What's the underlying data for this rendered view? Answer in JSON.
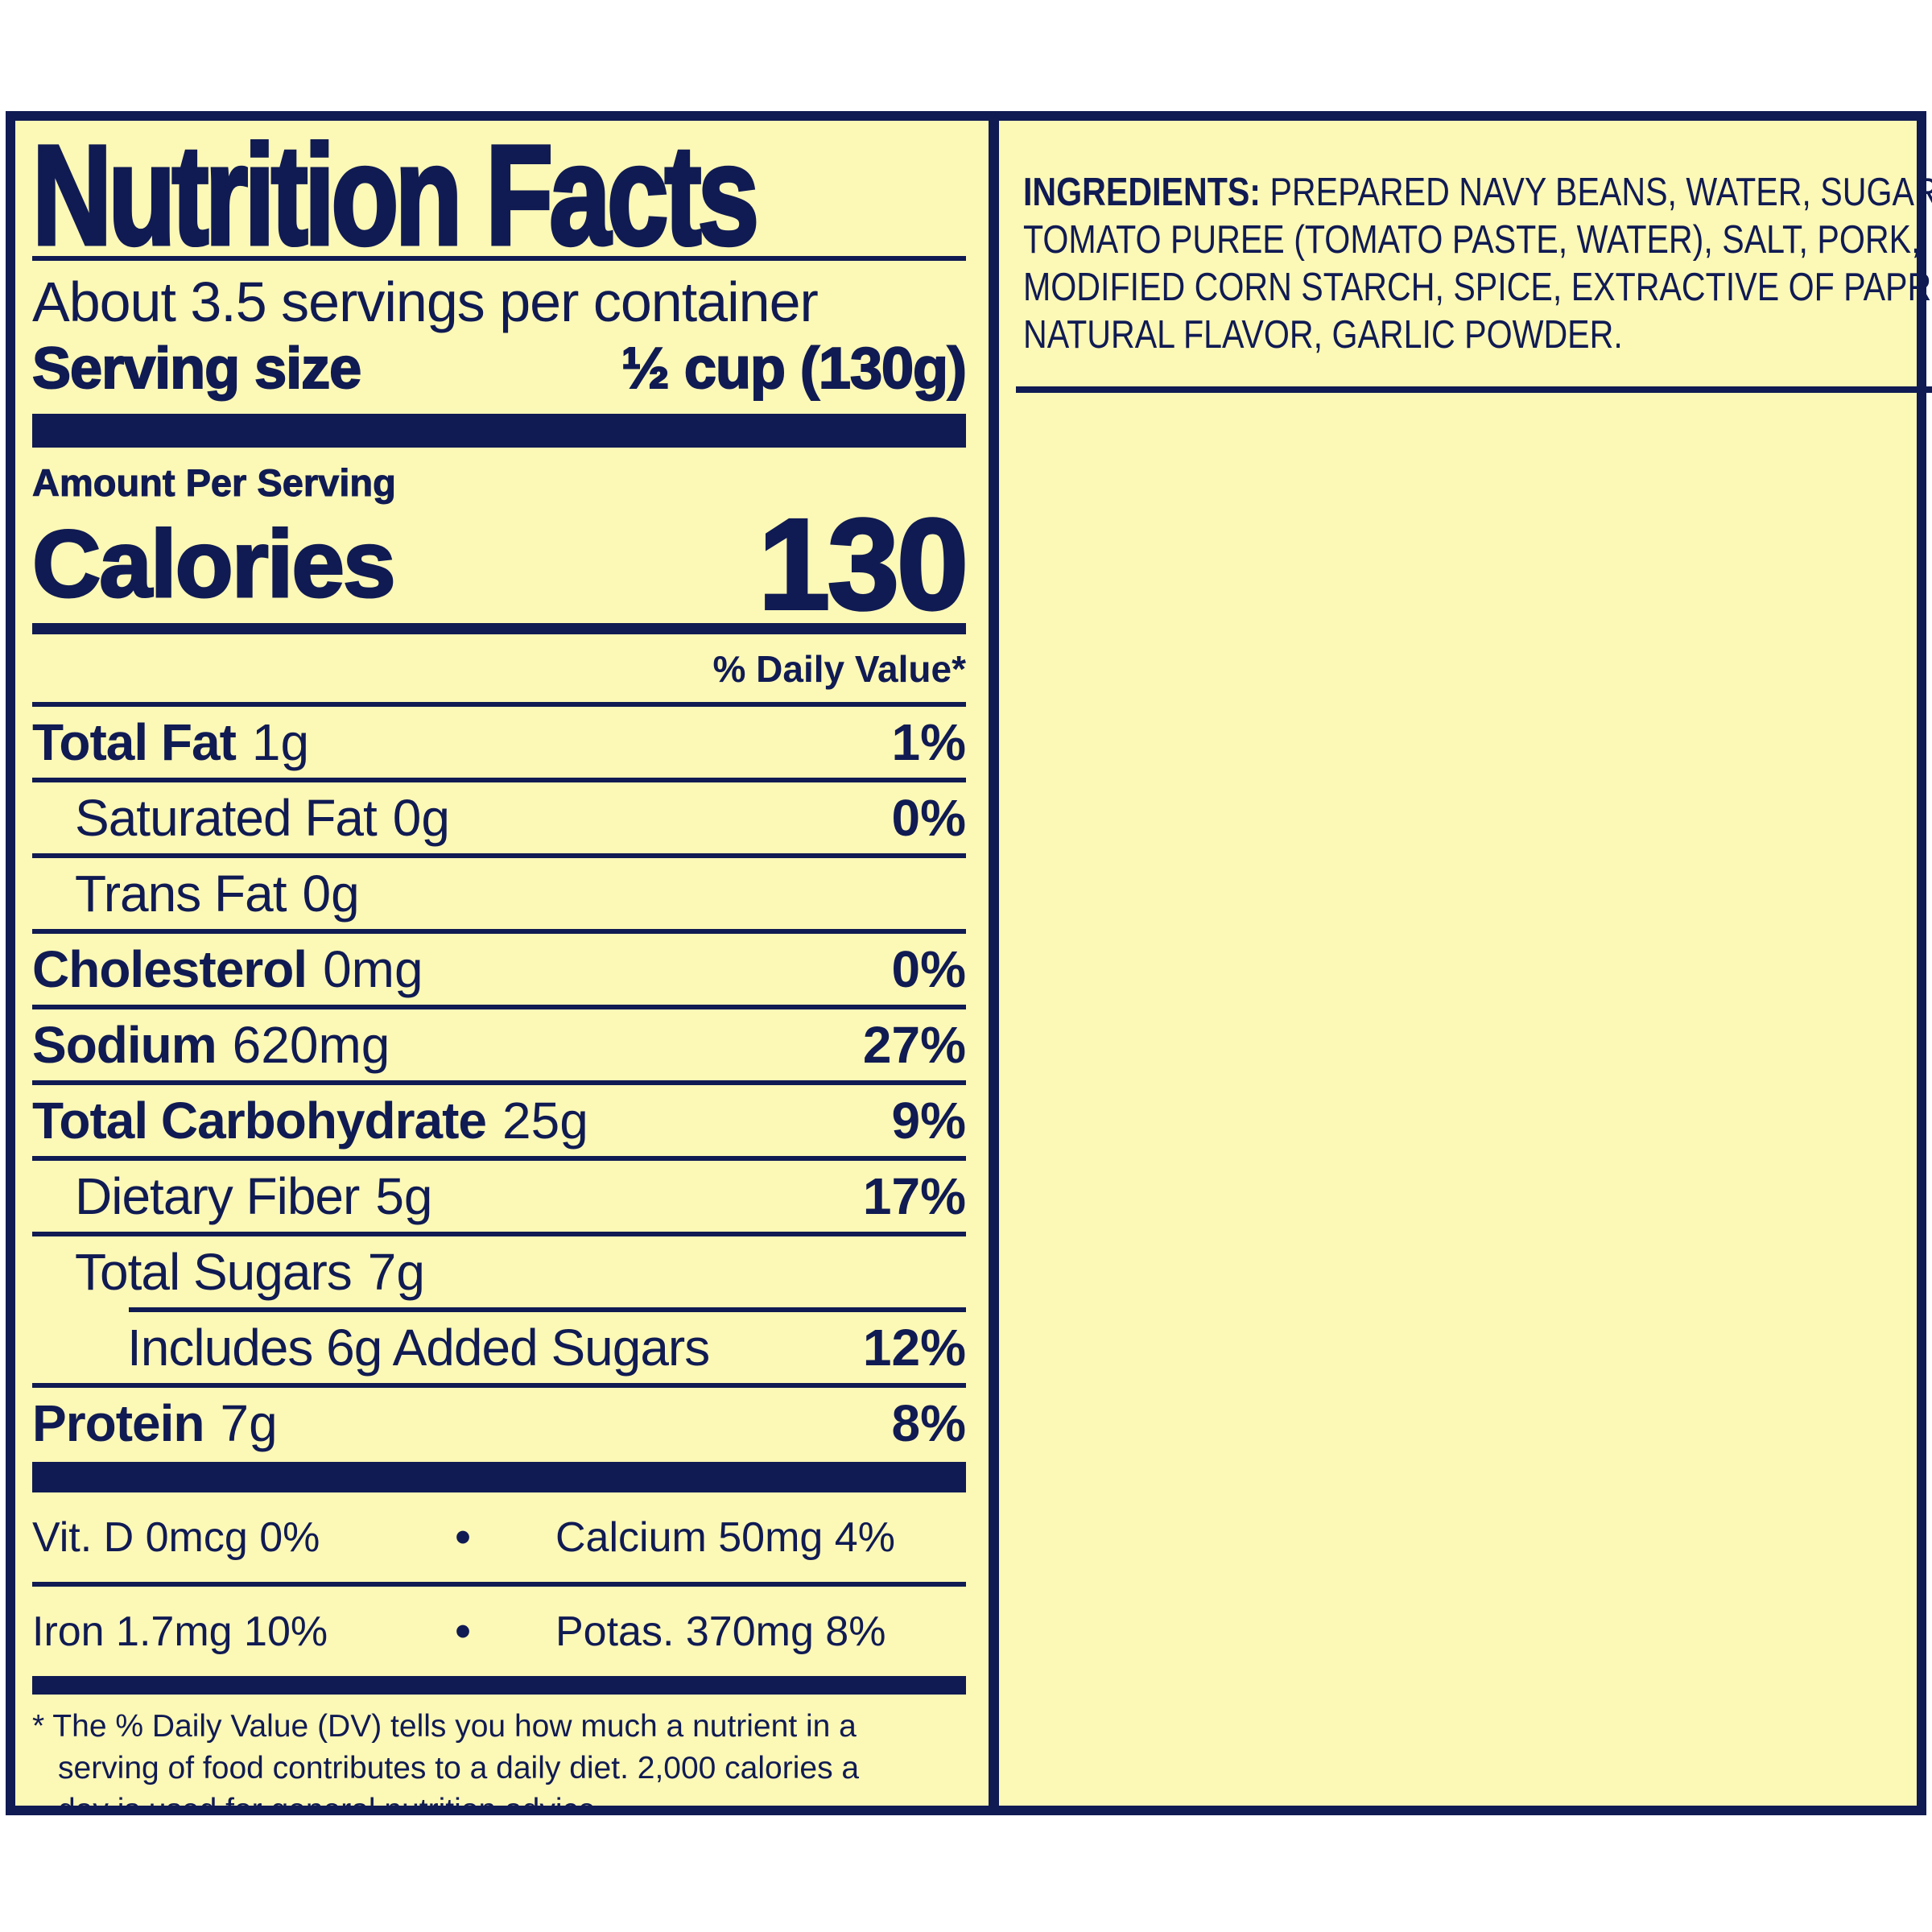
{
  "colors": {
    "navy": "#101b53",
    "yellow": "#fcf8b6"
  },
  "nutrition_panel": {
    "title": "Nutrition Facts",
    "servings_per_container": "About 3.5 servings per container",
    "serving_size_label": "Serving size",
    "serving_size_value": "½ cup (130g)",
    "amount_per_serving": "Amount Per Serving",
    "calories_label": "Calories",
    "calories_value": "130",
    "daily_value_header": "% Daily Value*",
    "rows": [
      {
        "name": "Total Fat",
        "qty": "1g",
        "dv": "1%"
      },
      {
        "name": "Saturated Fat",
        "qty": "0g",
        "dv": "0%"
      },
      {
        "name": "Trans Fat",
        "qty": "0g",
        "dv": ""
      },
      {
        "name": "Cholesterol",
        "qty": "0mg",
        "dv": "0%"
      },
      {
        "name": "Sodium",
        "qty": "620mg",
        "dv": "27%"
      },
      {
        "name": "Total Carbohydrate",
        "qty": "25g",
        "dv": "9%"
      },
      {
        "name": "Dietary Fiber",
        "qty": "5g",
        "dv": "17%"
      },
      {
        "name": "Total Sugars",
        "qty": "7g",
        "dv": ""
      },
      {
        "name": "Includes 6g Added Sugars",
        "qty": "",
        "dv": "12%"
      },
      {
        "name": "Protein",
        "qty": "7g",
        "dv": "8%"
      }
    ],
    "bullet": "•",
    "micros": [
      {
        "left": "Vit. D 0mcg 0%",
        "right": "Calcium 50mg 4%"
      },
      {
        "left": "Iron 1.7mg 10%",
        "right": "Potas. 370mg 8%"
      }
    ],
    "footnote_lines": [
      "* The % Daily Value (DV) tells you how much a nutrient in a",
      "serving of food contributes to a daily diet. 2,000 calories a",
      "day is used for general nutrition advice."
    ]
  },
  "ingredients_panel": {
    "label": "INGREDIENTS:",
    "lines": [
      "PREPARED NAVY BEANS, WATER, SUGAR,",
      "TOMATO PUREE (TOMATO PASTE, WATER), SALT, PORK,",
      "MODIFIED CORN STARCH, SPICE, EXTRACTIVE OF PAPRIKA,",
      "NATURAL FLAVOR, GARLIC POWDER."
    ]
  }
}
